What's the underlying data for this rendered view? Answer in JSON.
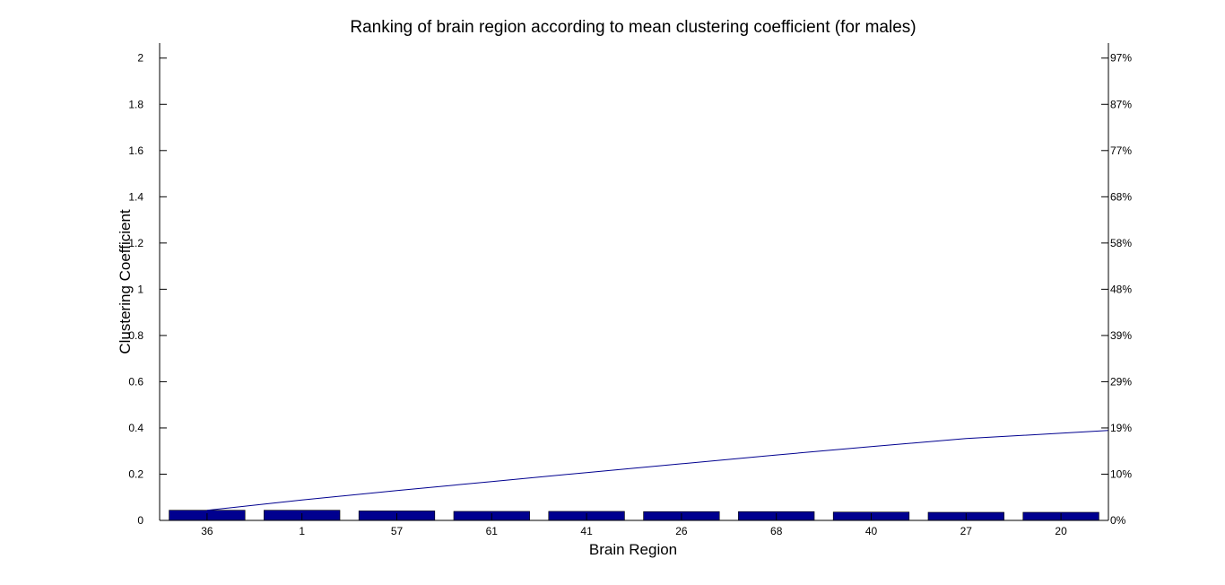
{
  "chart_data": {
    "type": "bar",
    "title": "Ranking of brain region according to mean clustering coefficient (for males)",
    "xlabel": "Brain Region",
    "ylabel": "Clustering Coefficient",
    "categories": [
      "36",
      "1",
      "57",
      "61",
      "41",
      "26",
      "68",
      "40",
      "27",
      "20"
    ],
    "series": [
      {
        "kind": "bar",
        "values": [
          0.044,
          0.044,
          0.041,
          0.039,
          0.039,
          0.038,
          0.038,
          0.036,
          0.035,
          0.035
        ]
      },
      {
        "kind": "cumulative-line",
        "values": [
          0.044,
          0.088,
          0.129,
          0.168,
          0.207,
          0.245,
          0.283,
          0.319,
          0.354,
          0.389
        ]
      }
    ],
    "ylim": [
      0,
      2.065
    ],
    "yticks": [
      0,
      0.2,
      0.4,
      0.6,
      0.8,
      1,
      1.2,
      1.4,
      1.6,
      1.8,
      2
    ],
    "ytick_labels": [
      "0",
      "0.2",
      "0.4",
      "0.6",
      "0.8",
      "1",
      "1.2",
      "1.4",
      "1.6",
      "1.8",
      "2"
    ],
    "y2_tick_labels": [
      "0%",
      "10%",
      "19%",
      "29%",
      "39%",
      "48%",
      "58%",
      "68%",
      "77%",
      "87%",
      "97%"
    ],
    "grid": false,
    "bar_color": "#00008f",
    "line_color": "#00008f"
  }
}
